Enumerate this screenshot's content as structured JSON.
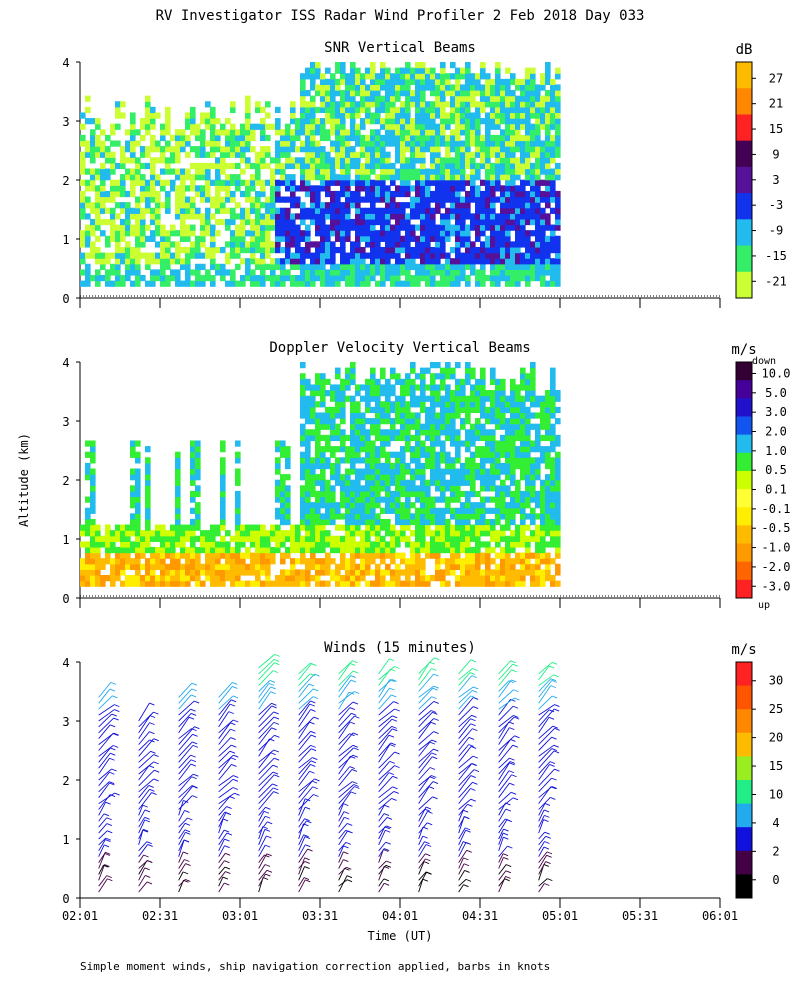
{
  "header": {
    "title": "RV Investigator ISS Radar Wind Profiler    2 Feb 2018 Day 033"
  },
  "footer": {
    "note": "Simple moment winds, ship navigation correction applied, barbs in knots"
  },
  "colors": {
    "snr": [
      "#ccff33",
      "#33ee66",
      "#22bbee",
      "#1133ee",
      "#551199",
      "#440055",
      "#ff2222",
      "#ff8800",
      "#ffbb00"
    ],
    "doppler": [
      "#ff2222",
      "#ff6600",
      "#ff9900",
      "#ffbb00",
      "#ffee00",
      "#ffff33",
      "#ccff00",
      "#33ee33",
      "#22bbee",
      "#1155ee",
      "#2211cc",
      "#440099",
      "#330033"
    ],
    "winds": [
      "#000000",
      "#440044",
      "#1111dd",
      "#22aaee",
      "#22ee88",
      "#99ee22",
      "#ffbb00",
      "#ff8800",
      "#ff5500",
      "#ff2222"
    ]
  },
  "chart_data": [
    {
      "type": "heatmap",
      "title": "SNR Vertical Beams",
      "ylabel": "",
      "ylim": [
        0,
        4
      ],
      "y_ticks": [
        "0",
        "1",
        "2",
        "3",
        "4"
      ],
      "x_ticks": [],
      "colorbar_unit": "dB",
      "colorbar_labels": [
        "27",
        "21",
        "15",
        "9",
        "3",
        "-3",
        "-9",
        "-15",
        "-21"
      ],
      "data_time_range": [
        "02:01",
        "05:01"
      ],
      "dominant_values": {
        "low_levels_dB": -9,
        "core_dB": -3,
        "upper_dB": -15
      }
    },
    {
      "type": "heatmap",
      "title": "Doppler Velocity Vertical Beams",
      "ylabel": "Altitude (km)",
      "ylim": [
        0,
        4
      ],
      "y_ticks": [
        "0",
        "1",
        "2",
        "3",
        "4"
      ],
      "x_ticks": [],
      "colorbar_unit": "m/s",
      "colorbar_top": "down",
      "colorbar_bottom": "up",
      "colorbar_labels": [
        "10.0",
        "5.0",
        "3.0",
        "2.0",
        "1.0",
        "0.5",
        "0.1",
        "-0.1",
        "-0.5",
        "-1.0",
        "-2.0",
        "-3.0"
      ],
      "data_time_range": [
        "02:01",
        "05:01"
      ]
    },
    {
      "type": "scatter",
      "title": "Winds (15 minutes)",
      "ylabel": "",
      "xlabel": "Time (UT)",
      "ylim": [
        0,
        4
      ],
      "y_ticks": [
        "0",
        "1",
        "2",
        "3",
        "4"
      ],
      "x_ticks": [
        "02:01",
        "02:31",
        "03:01",
        "03:31",
        "04:01",
        "04:31",
        "05:01",
        "05:31",
        "06:01"
      ],
      "colorbar_unit": "m/s",
      "colorbar_labels": [
        "30",
        "25",
        "20",
        "15",
        "10",
        "4",
        "2",
        "0"
      ],
      "profile_times": [
        "02:08",
        "02:23",
        "02:38",
        "02:53",
        "03:08",
        "03:23",
        "03:38",
        "03:53",
        "04:08",
        "04:23",
        "04:38",
        "04:53"
      ],
      "profile_top_km": [
        3.5,
        3.1,
        3.5,
        3.5,
        4.0,
        3.9,
        3.9,
        3.9,
        3.9,
        3.9,
        3.9,
        3.9
      ]
    }
  ]
}
